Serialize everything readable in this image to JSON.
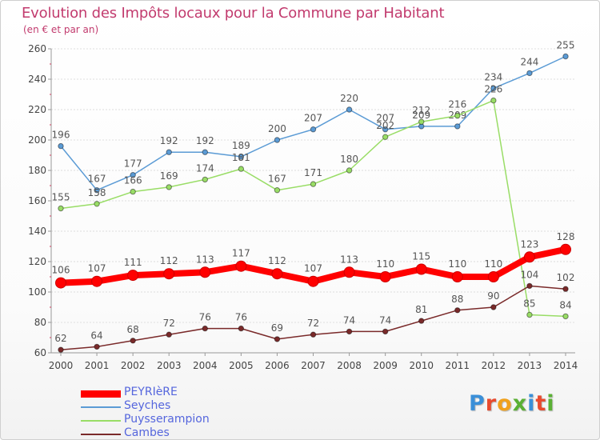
{
  "title": "Evolution des Impôts locaux pour la Commune par Habitant",
  "subtitle": "(en € et par an)",
  "logo": {
    "text": "Proxiti",
    "letter_colors": [
      "#3a8fd8",
      "#e84a2e",
      "#f0a11c",
      "#5ab034",
      "#3a8fd8",
      "#e84a2e",
      "#5ab034"
    ]
  },
  "chart_data": {
    "type": "line",
    "x": [
      2000,
      2001,
      2002,
      2003,
      2004,
      2005,
      2006,
      2007,
      2008,
      2009,
      2010,
      2011,
      2012,
      2013,
      2014
    ],
    "ylim": [
      60,
      260
    ],
    "yticks": [
      60,
      80,
      100,
      120,
      140,
      160,
      180,
      200,
      220,
      240,
      260
    ],
    "grid": true,
    "legend_position": "bottom-left",
    "series": [
      {
        "name": "PEYRIèRE",
        "color": "#ff0000",
        "emphasis": true,
        "values": [
          106,
          107,
          111,
          112,
          113,
          117,
          112,
          107,
          113,
          110,
          115,
          110,
          110,
          123,
          128
        ]
      },
      {
        "name": "Seyches",
        "color": "#5b9bd5",
        "emphasis": false,
        "values": [
          196,
          167,
          177,
          192,
          192,
          189,
          200,
          207,
          220,
          207,
          209,
          209,
          234,
          244,
          255
        ]
      },
      {
        "name": "Puysserampion",
        "color": "#99dd66",
        "emphasis": false,
        "values": [
          155,
          158,
          166,
          169,
          174,
          181,
          167,
          171,
          180,
          202,
          212,
          216,
          226,
          85,
          84
        ]
      },
      {
        "name": "Cambes",
        "color": "#7a2a2a",
        "emphasis": false,
        "values": [
          62,
          64,
          68,
          72,
          76,
          76,
          69,
          72,
          74,
          74,
          81,
          88,
          90,
          104,
          102
        ]
      }
    ]
  }
}
